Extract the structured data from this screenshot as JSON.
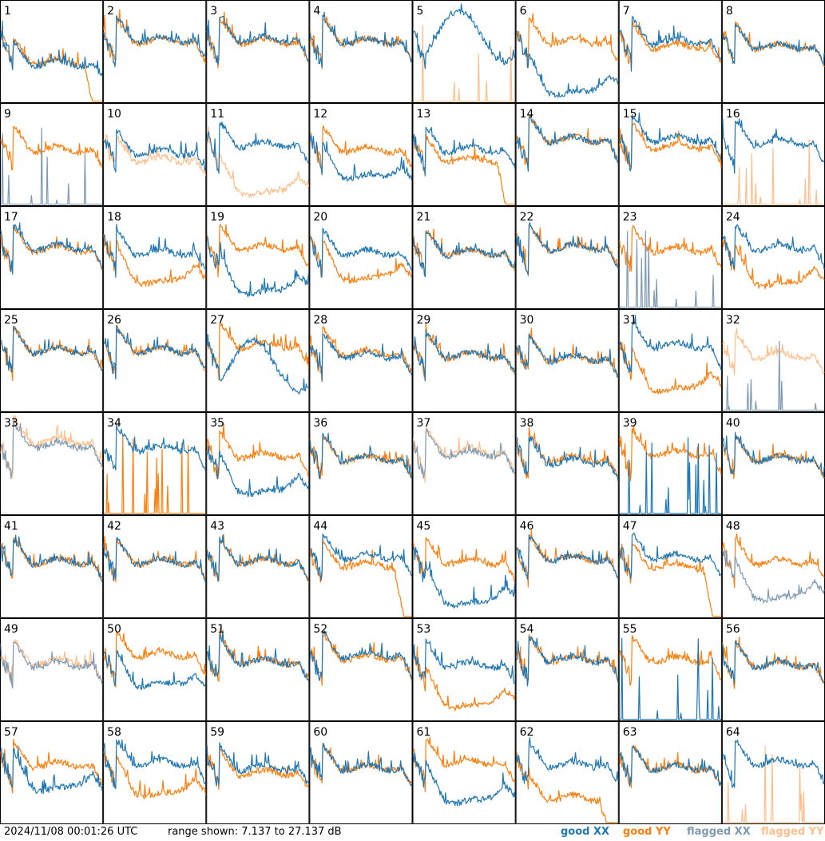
{
  "footer": {
    "timestamp": "2024/11/08 00:01:26 UTC",
    "range": "range shown: 7.137 to 27.137 dB",
    "legend": {
      "good_xx": "good XX",
      "good_yy": "good YY",
      "flagged_xx": "flagged XX",
      "flagged_yy": "flagged YY"
    }
  },
  "colors": {
    "good_xx": "#1f77b4",
    "good_yy": "#ff7f0e",
    "flagged_xx": "#7f9bb3",
    "flagged_yy": "#ffbf8c"
  },
  "chart_data": {
    "type": "line",
    "grid": "8x8 small multiples, one panel per antenna",
    "ylim": [
      7.137,
      27.137
    ],
    "panels": [
      {
        "label": "1",
        "xx": {
          "state": "good",
          "shape": "std",
          "level": 0.62
        },
        "yy": {
          "state": "good",
          "shape": "drop",
          "level": 0.6
        }
      },
      {
        "label": "2",
        "xx": {
          "state": "good",
          "shape": "std",
          "level": 0.38
        },
        "yy": {
          "state": "good",
          "shape": "std",
          "level": 0.4
        }
      },
      {
        "label": "3",
        "xx": {
          "state": "good",
          "shape": "std",
          "level": 0.38
        },
        "yy": {
          "state": "good",
          "shape": "std",
          "level": 0.4
        }
      },
      {
        "label": "4",
        "xx": {
          "state": "good",
          "shape": "std",
          "level": 0.4
        },
        "yy": {
          "state": "good",
          "shape": "std",
          "level": 0.4
        }
      },
      {
        "label": "5",
        "xx": {
          "state": "good",
          "shape": "wave",
          "level": 0.35
        },
        "yy": {
          "state": "flagged",
          "shape": "zero_spike",
          "level": 0.9
        }
      },
      {
        "label": "6",
        "xx": {
          "state": "good",
          "shape": "sag",
          "level": 0.75
        },
        "yy": {
          "state": "good",
          "shape": "std",
          "level": 0.4
        }
      },
      {
        "label": "7",
        "xx": {
          "state": "good",
          "shape": "std",
          "level": 0.4
        },
        "yy": {
          "state": "good",
          "shape": "std",
          "level": 0.45
        }
      },
      {
        "label": "8",
        "xx": {
          "state": "good",
          "shape": "std",
          "level": 0.45
        },
        "yy": {
          "state": "good",
          "shape": "std",
          "level": 0.45
        }
      },
      {
        "label": "9",
        "xx": {
          "state": "flagged",
          "shape": "zero_spike",
          "level": 0.85
        },
        "yy": {
          "state": "good",
          "shape": "std",
          "level": 0.45
        }
      },
      {
        "label": "10",
        "xx": {
          "state": "good",
          "shape": "std",
          "level": 0.48
        },
        "yy": {
          "state": "flagged",
          "shape": "std",
          "level": 0.55
        }
      },
      {
        "label": "11",
        "xx": {
          "state": "good",
          "shape": "std",
          "level": 0.4
        },
        "yy": {
          "state": "flagged",
          "shape": "sag",
          "level": 0.72
        }
      },
      {
        "label": "12",
        "xx": {
          "state": "good",
          "shape": "dip",
          "level": 0.62
        },
        "yy": {
          "state": "good",
          "shape": "std",
          "level": 0.45
        }
      },
      {
        "label": "13",
        "xx": {
          "state": "good",
          "shape": "std",
          "level": 0.45
        },
        "yy": {
          "state": "good",
          "shape": "drop",
          "level": 0.55
        }
      },
      {
        "label": "14",
        "xx": {
          "state": "good",
          "shape": "std",
          "level": 0.35
        },
        "yy": {
          "state": "good",
          "shape": "std",
          "level": 0.35
        }
      },
      {
        "label": "15",
        "xx": {
          "state": "good",
          "shape": "std",
          "level": 0.35
        },
        "yy": {
          "state": "good",
          "shape": "std",
          "level": 0.42
        }
      },
      {
        "label": "16",
        "xx": {
          "state": "good",
          "shape": "std",
          "level": 0.38
        },
        "yy": {
          "state": "flagged",
          "shape": "zero_spike",
          "level": 0.6
        }
      },
      {
        "label": "17",
        "xx": {
          "state": "good",
          "shape": "std",
          "level": 0.4
        },
        "yy": {
          "state": "good",
          "shape": "std",
          "level": 0.42
        }
      },
      {
        "label": "18",
        "xx": {
          "state": "good",
          "shape": "std",
          "level": 0.45
        },
        "yy": {
          "state": "good",
          "shape": "sag",
          "level": 0.58
        }
      },
      {
        "label": "19",
        "xx": {
          "state": "good",
          "shape": "sag",
          "level": 0.68
        },
        "yy": {
          "state": "good",
          "shape": "std",
          "level": 0.4
        }
      },
      {
        "label": "20",
        "xx": {
          "state": "good",
          "shape": "std",
          "level": 0.45
        },
        "yy": {
          "state": "good",
          "shape": "sag",
          "level": 0.55
        }
      },
      {
        "label": "21",
        "xx": {
          "state": "good",
          "shape": "std",
          "level": 0.45
        },
        "yy": {
          "state": "good",
          "shape": "std",
          "level": 0.45
        }
      },
      {
        "label": "22",
        "xx": {
          "state": "good",
          "shape": "std",
          "level": 0.4
        },
        "yy": {
          "state": "good",
          "shape": "std",
          "level": 0.4
        }
      },
      {
        "label": "23",
        "xx": {
          "state": "flagged",
          "shape": "zero_spike",
          "level": 0.7
        },
        "yy": {
          "state": "good",
          "shape": "std",
          "level": 0.42
        }
      },
      {
        "label": "24",
        "xx": {
          "state": "good",
          "shape": "std",
          "level": 0.4
        },
        "yy": {
          "state": "good",
          "shape": "sag",
          "level": 0.6
        }
      },
      {
        "label": "25",
        "xx": {
          "state": "good",
          "shape": "std",
          "level": 0.4
        },
        "yy": {
          "state": "good",
          "shape": "std",
          "level": 0.4
        }
      },
      {
        "label": "26",
        "xx": {
          "state": "good",
          "shape": "std",
          "level": 0.4
        },
        "yy": {
          "state": "good",
          "shape": "std",
          "level": 0.4
        }
      },
      {
        "label": "27",
        "xx": {
          "state": "good",
          "shape": "wave",
          "level": 0.55
        },
        "yy": {
          "state": "good",
          "shape": "std",
          "level": 0.35
        }
      },
      {
        "label": "28",
        "xx": {
          "state": "good",
          "shape": "std",
          "level": 0.45
        },
        "yy": {
          "state": "good",
          "shape": "std",
          "level": 0.42
        }
      },
      {
        "label": "29",
        "xx": {
          "state": "good",
          "shape": "std",
          "level": 0.45
        },
        "yy": {
          "state": "good",
          "shape": "std",
          "level": 0.45
        }
      },
      {
        "label": "30",
        "xx": {
          "state": "good",
          "shape": "std",
          "level": 0.48
        },
        "yy": {
          "state": "good",
          "shape": "std",
          "level": 0.48
        }
      },
      {
        "label": "31",
        "xx": {
          "state": "good",
          "shape": "std",
          "level": 0.35
        },
        "yy": {
          "state": "good",
          "shape": "sag",
          "level": 0.62
        }
      },
      {
        "label": "32",
        "xx": {
          "state": "flagged",
          "shape": "zero_spike",
          "level": 0.5
        },
        "yy": {
          "state": "flagged",
          "shape": "std",
          "level": 0.45
        }
      },
      {
        "label": "33",
        "xx": {
          "state": "flagged",
          "shape": "std",
          "level": 0.32
        },
        "yy": {
          "state": "flagged",
          "shape": "std",
          "level": 0.28
        }
      },
      {
        "label": "34",
        "xx": {
          "state": "good",
          "shape": "std",
          "level": 0.35
        },
        "yy": {
          "state": "good",
          "shape": "zero_spike",
          "level": 0.85
        }
      },
      {
        "label": "35",
        "xx": {
          "state": "good",
          "shape": "sag",
          "level": 0.62
        },
        "yy": {
          "state": "good",
          "shape": "std",
          "level": 0.42
        }
      },
      {
        "label": "36",
        "xx": {
          "state": "good",
          "shape": "std",
          "level": 0.45
        },
        "yy": {
          "state": "good",
          "shape": "std",
          "level": 0.45
        }
      },
      {
        "label": "37",
        "xx": {
          "state": "flagged",
          "shape": "std",
          "level": 0.4
        },
        "yy": {
          "state": "flagged",
          "shape": "std",
          "level": 0.38
        }
      },
      {
        "label": "38",
        "xx": {
          "state": "good",
          "shape": "std",
          "level": 0.48
        },
        "yy": {
          "state": "good",
          "shape": "std",
          "level": 0.45
        }
      },
      {
        "label": "39",
        "xx": {
          "state": "good",
          "shape": "zero_spike",
          "level": 0.55
        },
        "yy": {
          "state": "good",
          "shape": "std",
          "level": 0.4
        }
      },
      {
        "label": "40",
        "xx": {
          "state": "good",
          "shape": "std",
          "level": 0.45
        },
        "yy": {
          "state": "good",
          "shape": "std",
          "level": 0.45
        }
      },
      {
        "label": "41",
        "xx": {
          "state": "good",
          "shape": "std",
          "level": 0.45
        },
        "yy": {
          "state": "good",
          "shape": "std",
          "level": 0.45
        }
      },
      {
        "label": "42",
        "xx": {
          "state": "good",
          "shape": "std",
          "level": 0.45
        },
        "yy": {
          "state": "good",
          "shape": "std",
          "level": 0.45
        }
      },
      {
        "label": "43",
        "xx": {
          "state": "good",
          "shape": "std",
          "level": 0.45
        },
        "yy": {
          "state": "good",
          "shape": "std",
          "level": 0.45
        }
      },
      {
        "label": "44",
        "xx": {
          "state": "good",
          "shape": "std",
          "level": 0.4
        },
        "yy": {
          "state": "good",
          "shape": "drop",
          "level": 0.48
        }
      },
      {
        "label": "45",
        "xx": {
          "state": "good",
          "shape": "sag",
          "level": 0.7
        },
        "yy": {
          "state": "good",
          "shape": "std",
          "level": 0.45
        }
      },
      {
        "label": "46",
        "xx": {
          "state": "good",
          "shape": "std",
          "level": 0.42
        },
        "yy": {
          "state": "good",
          "shape": "std",
          "level": 0.42
        }
      },
      {
        "label": "47",
        "xx": {
          "state": "good",
          "shape": "std",
          "level": 0.4
        },
        "yy": {
          "state": "good",
          "shape": "drop",
          "level": 0.5
        }
      },
      {
        "label": "48",
        "xx": {
          "state": "flagged",
          "shape": "sag",
          "level": 0.65
        },
        "yy": {
          "state": "good",
          "shape": "std",
          "level": 0.45
        }
      },
      {
        "label": "49",
        "xx": {
          "state": "flagged",
          "shape": "std",
          "level": 0.45
        },
        "yy": {
          "state": "flagged",
          "shape": "std",
          "level": 0.42
        }
      },
      {
        "label": "50",
        "xx": {
          "state": "good",
          "shape": "dip",
          "level": 0.55
        },
        "yy": {
          "state": "good",
          "shape": "std",
          "level": 0.35
        }
      },
      {
        "label": "51",
        "xx": {
          "state": "good",
          "shape": "std",
          "level": 0.42
        },
        "yy": {
          "state": "good",
          "shape": "std",
          "level": 0.42
        }
      },
      {
        "label": "52",
        "xx": {
          "state": "good",
          "shape": "std",
          "level": 0.35
        },
        "yy": {
          "state": "good",
          "shape": "std",
          "level": 0.38
        }
      },
      {
        "label": "53",
        "xx": {
          "state": "good",
          "shape": "std",
          "level": 0.45
        },
        "yy": {
          "state": "good",
          "shape": "sag",
          "level": 0.7
        }
      },
      {
        "label": "54",
        "xx": {
          "state": "good",
          "shape": "std",
          "level": 0.4
        },
        "yy": {
          "state": "good",
          "shape": "std",
          "level": 0.4
        }
      },
      {
        "label": "55",
        "xx": {
          "state": "good",
          "shape": "zero_spike",
          "level": 0.75
        },
        "yy": {
          "state": "good",
          "shape": "std",
          "level": 0.4
        }
      },
      {
        "label": "56",
        "xx": {
          "state": "good",
          "shape": "std",
          "level": 0.45
        },
        "yy": {
          "state": "good",
          "shape": "std",
          "level": 0.45
        }
      },
      {
        "label": "57",
        "xx": {
          "state": "good",
          "shape": "sag",
          "level": 0.5
        },
        "yy": {
          "state": "good",
          "shape": "std",
          "level": 0.42
        }
      },
      {
        "label": "58",
        "xx": {
          "state": "good",
          "shape": "std",
          "level": 0.4
        },
        "yy": {
          "state": "good",
          "shape": "sag",
          "level": 0.55
        }
      },
      {
        "label": "59",
        "xx": {
          "state": "good",
          "shape": "std",
          "level": 0.45
        },
        "yy": {
          "state": "good",
          "shape": "std",
          "level": 0.5
        }
      },
      {
        "label": "60",
        "xx": {
          "state": "good",
          "shape": "std",
          "level": 0.45
        },
        "yy": {
          "state": "good",
          "shape": "std",
          "level": 0.45
        }
      },
      {
        "label": "61",
        "xx": {
          "state": "good",
          "shape": "sag",
          "level": 0.62
        },
        "yy": {
          "state": "good",
          "shape": "std",
          "level": 0.4
        }
      },
      {
        "label": "62",
        "xx": {
          "state": "good",
          "shape": "std",
          "level": 0.42
        },
        "yy": {
          "state": "good",
          "shape": "drop",
          "level": 0.75
        }
      },
      {
        "label": "63",
        "xx": {
          "state": "good",
          "shape": "std",
          "level": 0.45
        },
        "yy": {
          "state": "good",
          "shape": "std",
          "level": 0.45
        }
      },
      {
        "label": "64",
        "xx": {
          "state": "good",
          "shape": "std",
          "level": 0.4
        },
        "yy": {
          "state": "flagged",
          "shape": "zero_spike",
          "level": 0.6
        }
      }
    ]
  }
}
